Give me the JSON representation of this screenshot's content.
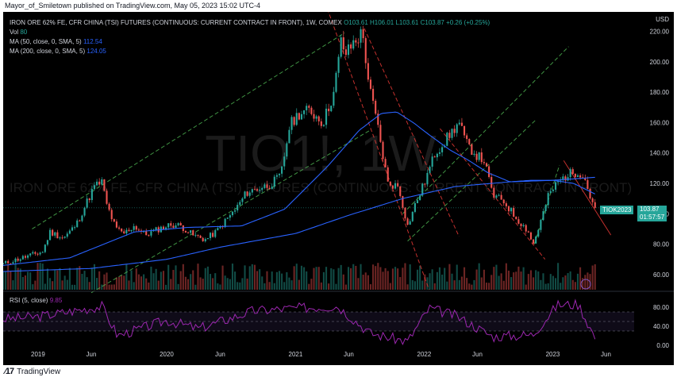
{
  "publisher": {
    "text": "Mayor_of_Smiletown published on TradingView.com, May 05, 2023 15:02 UTC-4"
  },
  "legend": {
    "title": "IRON ORE 62% FE, CFR CHINA (TSI) FUTURES (CONTINUOUS: CURRENT CONTRACT IN FRONT), 1W, COMEX",
    "ohlc": "O103.61 H106.01 L103.61 C103.87 +0.26 (+0.25%)",
    "vol_label": "Vol",
    "vol_value": "80",
    "ma50_label": "MA (50, close, 0, SMA, 5)",
    "ma50_value": "112.54",
    "ma200_label": "MA (200, close, 0, SMA, 5)",
    "ma200_value": "124.05",
    "rsi_label": "RSI (5, close)",
    "rsi_value": "9.85"
  },
  "watermark": {
    "symbol": "TIO1!, 1W",
    "name": "IRON ORE 62% FE, CFR CHINA (TSI) FUTURES (CONTINUOUS: CURRENT CONTRACT IN FRONT)"
  },
  "price_tag": {
    "ticker": "TIOK2023",
    "price": "103.87",
    "countdown": "01:57:57"
  },
  "footer": {
    "brand": "TradingView"
  },
  "colors": {
    "background": "#000000",
    "up": "#26a69a",
    "down": "#ef5350",
    "ma50": "#2962ff",
    "ma200": "#2962ff",
    "rsi": "#9c27b0",
    "channel_green": "#4caf50",
    "channel_red": "#e53935",
    "text": "#d1d4dc"
  },
  "chart_data": {
    "type": "candlestick",
    "price_axis": {
      "unit": "USD",
      "ticks": [
        60,
        80,
        100,
        120,
        140,
        160,
        180,
        200,
        220
      ],
      "range": [
        50,
        225
      ]
    },
    "rsi_axis": {
      "ticks": [
        0,
        40,
        80
      ],
      "range": [
        0,
        100
      ],
      "bands": [
        30,
        70
      ]
    },
    "time_axis": {
      "range": [
        "2018-09-24",
        "2023-08-20"
      ],
      "ticks": [
        {
          "date": "2019-01-01",
          "label": "2019"
        },
        {
          "date": "2019-06-01",
          "label": "Jun"
        },
        {
          "date": "2020-01-01",
          "label": "2020"
        },
        {
          "date": "2020-06-01",
          "label": "Jun"
        },
        {
          "date": "2021-01-01",
          "label": "2021"
        },
        {
          "date": "2021-06-01",
          "label": "Jun"
        },
        {
          "date": "2022-01-01",
          "label": "2022"
        },
        {
          "date": "2022-06-01",
          "label": "Jun"
        },
        {
          "date": "2023-01-01",
          "label": "2023"
        },
        {
          "date": "2023-06-01",
          "label": "Jun"
        }
      ]
    },
    "close_anchors": [
      [
        "2018-09-24",
        67
      ],
      [
        "2018-12-01",
        72
      ],
      [
        "2019-01-14",
        75
      ],
      [
        "2019-02-04",
        88
      ],
      [
        "2019-03-15",
        84
      ],
      [
        "2019-04-20",
        93
      ],
      [
        "2019-05-20",
        108
      ],
      [
        "2019-06-10",
        118
      ],
      [
        "2019-07-01",
        121
      ],
      [
        "2019-07-15",
        106
      ],
      [
        "2019-08-10",
        90
      ],
      [
        "2019-09-01",
        87
      ],
      [
        "2019-10-01",
        92
      ],
      [
        "2019-11-01",
        86
      ],
      [
        "2019-12-10",
        90
      ],
      [
        "2020-01-15",
        93
      ],
      [
        "2020-02-10",
        92
      ],
      [
        "2020-03-15",
        86
      ],
      [
        "2020-04-20",
        83
      ],
      [
        "2020-05-20",
        88
      ],
      [
        "2020-06-15",
        95
      ],
      [
        "2020-07-15",
        103
      ],
      [
        "2020-08-15",
        114
      ],
      [
        "2020-09-20",
        117
      ],
      [
        "2020-10-20",
        119
      ],
      [
        "2020-11-20",
        125
      ],
      [
        "2020-12-15",
        158
      ],
      [
        "2021-01-10",
        166
      ],
      [
        "2021-02-10",
        168
      ],
      [
        "2021-03-20",
        160
      ],
      [
        "2021-04-20",
        180
      ],
      [
        "2021-05-10",
        213
      ],
      [
        "2021-05-25",
        205
      ],
      [
        "2021-06-15",
        213
      ],
      [
        "2021-07-10",
        219
      ],
      [
        "2021-07-30",
        182
      ],
      [
        "2021-08-20",
        160
      ],
      [
        "2021-09-20",
        120
      ],
      [
        "2021-10-20",
        118
      ],
      [
        "2021-11-15",
        92
      ],
      [
        "2021-12-05",
        105
      ],
      [
        "2022-01-01",
        120
      ],
      [
        "2022-02-01",
        140
      ],
      [
        "2022-03-01",
        148
      ],
      [
        "2022-04-10",
        160
      ],
      [
        "2022-05-01",
        146
      ],
      [
        "2022-06-01",
        138
      ],
      [
        "2022-06-20",
        135
      ],
      [
        "2022-07-15",
        112
      ],
      [
        "2022-08-15",
        108
      ],
      [
        "2022-09-20",
        97
      ],
      [
        "2022-10-25",
        88
      ],
      [
        "2022-11-05",
        79
      ],
      [
        "2022-11-25",
        93
      ],
      [
        "2022-12-20",
        112
      ],
      [
        "2023-01-15",
        121
      ],
      [
        "2023-02-15",
        126
      ],
      [
        "2023-03-15",
        128
      ],
      [
        "2023-04-01",
        124
      ],
      [
        "2023-04-20",
        109
      ],
      [
        "2023-05-05",
        103.87
      ]
    ],
    "last": {
      "date": "2023-05-05",
      "open": 103.61,
      "high": 106.01,
      "low": 103.61,
      "close": 103.87,
      "change": 0.26,
      "change_pct": 0.25
    },
    "ma50_anchors": [
      [
        "2018-09-24",
        66
      ],
      [
        "2019-04-01",
        71
      ],
      [
        "2019-10-01",
        88
      ],
      [
        "2020-03-01",
        91
      ],
      [
        "2020-08-01",
        92
      ],
      [
        "2020-12-01",
        103
      ],
      [
        "2021-04-01",
        131
      ],
      [
        "2021-07-01",
        155
      ],
      [
        "2021-09-01",
        166
      ],
      [
        "2021-10-15",
        167
      ],
      [
        "2021-12-01",
        160
      ],
      [
        "2022-01-15",
        152
      ],
      [
        "2022-03-15",
        142
      ],
      [
        "2022-05-01",
        136
      ],
      [
        "2022-07-01",
        127
      ],
      [
        "2022-09-01",
        121
      ],
      [
        "2022-11-01",
        122
      ],
      [
        "2023-01-01",
        122
      ],
      [
        "2023-03-01",
        120
      ],
      [
        "2023-05-05",
        112.54
      ]
    ],
    "ma200_anchors": [
      [
        "2018-09-24",
        62
      ],
      [
        "2019-06-01",
        64
      ],
      [
        "2020-01-01",
        70
      ],
      [
        "2020-06-01",
        78
      ],
      [
        "2021-01-01",
        87
      ],
      [
        "2021-06-01",
        99
      ],
      [
        "2021-11-01",
        110
      ],
      [
        "2022-04-01",
        118
      ],
      [
        "2022-09-01",
        121
      ],
      [
        "2023-01-01",
        122
      ],
      [
        "2023-05-05",
        124.05
      ]
    ],
    "volume_note": "weekly volume bars along bottom of price pane; last value 80",
    "rsi_anchors": [
      [
        "2018-09-24",
        55
      ],
      [
        "2019-01-01",
        60
      ],
      [
        "2019-07-01",
        82
      ],
      [
        "2019-08-15",
        20
      ],
      [
        "2020-01-01",
        52
      ],
      [
        "2020-04-01",
        35
      ],
      [
        "2020-09-01",
        72
      ],
      [
        "2021-01-01",
        78
      ],
      [
        "2021-05-01",
        82
      ],
      [
        "2021-08-01",
        25
      ],
      [
        "2021-11-15",
        8
      ],
      [
        "2022-01-15",
        78
      ],
      [
        "2022-04-01",
        62
      ],
      [
        "2022-07-15",
        18
      ],
      [
        "2022-11-05",
        22
      ],
      [
        "2023-01-15",
        85
      ],
      [
        "2023-03-15",
        86
      ],
      [
        "2023-05-05",
        9.85
      ]
    ],
    "trendlines": [
      {
        "color": "channel_green",
        "style": "dashed",
        "from": [
          "2018-12-15",
          90
        ],
        "to": [
          "2021-05-20",
          219
        ]
      },
      {
        "color": "channel_green",
        "style": "dashed",
        "from": [
          "2019-06-01",
          48
        ],
        "to": [
          "2021-08-01",
          155
        ]
      },
      {
        "color": "channel_green",
        "style": "dashed",
        "from": [
          "2021-11-01",
          100
        ],
        "to": [
          "2023-02-15",
          210
        ]
      },
      {
        "color": "channel_green",
        "style": "dashed",
        "from": [
          "2021-11-15",
          82
        ],
        "to": [
          "2022-11-15",
          162
        ]
      },
      {
        "color": "channel_red",
        "style": "dashed",
        "from": [
          "2021-04-01",
          235
        ],
        "to": [
          "2022-01-15",
          50
        ]
      },
      {
        "color": "channel_red",
        "style": "dashed",
        "from": [
          "2021-07-15",
          222
        ],
        "to": [
          "2022-04-10",
          85
        ]
      },
      {
        "color": "channel_red",
        "style": "dashed",
        "from": [
          "2022-02-15",
          156
        ],
        "to": [
          "2022-12-10",
          70
        ]
      },
      {
        "color": "channel_red",
        "style": "solid",
        "from": [
          "2023-02-01",
          135
        ],
        "to": [
          "2023-06-15",
          86
        ]
      },
      {
        "color": "channel_green",
        "style": "dashed",
        "from": [
          "2022-11-10",
          80
        ],
        "to": [
          "2023-01-20",
          132
        ]
      }
    ]
  }
}
